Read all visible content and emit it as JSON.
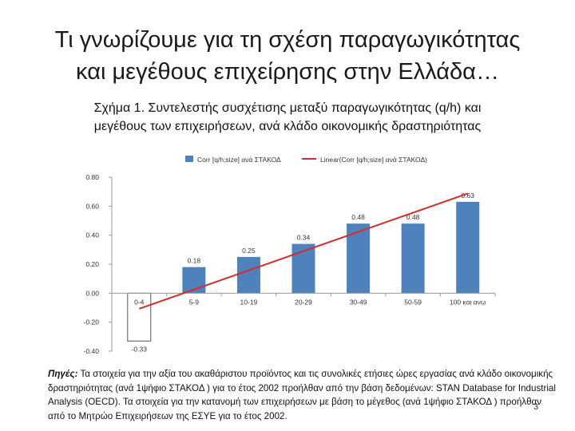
{
  "slide": {
    "title_line1": "Τι γνωρίζουμε για τη σχέση παραγωγικότητας",
    "title_line2": "και μεγέθους επιχείρησης στην Ελλάδα…",
    "caption_line1": "Σχήμα 1. Συντελεστής συσχέτισης μεταξύ παραγωγικότητας (q/h) και",
    "caption_line2": "μεγέθους των επιχειρήσεων, ανά κλάδο οικονομικής δραστηριότητας",
    "source_label": "Πηγές:",
    "source_text": " Τα στοιχεία για την αξία του ακαθάριστου προϊόντος και τις συνολικές ετήσιες ώρες εργασίας ανά κλάδο οικονομικής δραστηριότητας (ανά 1ψήφιο ΣΤΑΚΟΔ ) για το έτος 2002 προήλθαν από την βάση δεδομένων: STAN Database for Industrial Analysis (OECD). Τα στοιχεία για την κατανομή των επιχειρήσεων με βάση το μέγεθος (ανά 1ψήφιο ΣΤΑΚΟΔ ) προήλθαν από το Μητρώο Επιχειρήσεων της ΕΣΥΕ για το έτος 2002.",
    "page_number": "3"
  },
  "chart_data": {
    "type": "bar",
    "categories": [
      "0-4",
      "5-9",
      "10-19",
      "20-29",
      "30-49",
      "50-59",
      "100 και ανω"
    ],
    "series": [
      {
        "name": "Corr [q/h;size] ανά ΣΤΑΚΟΔ",
        "values": [
          -0.33,
          0.18,
          0.25,
          0.34,
          0.48,
          0.48,
          0.63
        ],
        "data_labels": [
          "-0.33",
          "0.18",
          "0.25",
          "0.34",
          "0.48",
          "0.48",
          "0.63"
        ],
        "color": "#4f81bd",
        "negative_fill": "#ffffff"
      },
      {
        "name": "Linear(Corr [q/h;size] ανά ΣΤΑΚΟΔ)",
        "type": "trendline",
        "color": "#d62b2b"
      }
    ],
    "ylim": [
      -0.4,
      0.8
    ],
    "yticks": [
      -0.4,
      -0.2,
      0.0,
      0.2,
      0.4,
      0.6,
      0.8
    ],
    "ytick_labels": [
      "-0.40",
      "-0.20",
      "0.00",
      "0.20",
      "0.40",
      "0.60",
      "0.80"
    ],
    "legend_position": "top",
    "grid": false
  }
}
